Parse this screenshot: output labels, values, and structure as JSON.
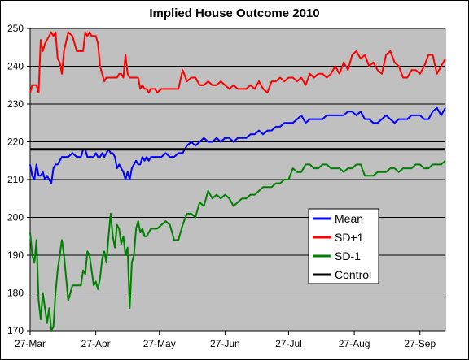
{
  "chart_data": {
    "type": "line",
    "title": "Implied House Outcome 2010",
    "xlabel": "",
    "ylabel": "",
    "ylim": [
      170,
      250
    ],
    "yticks": [
      170,
      180,
      190,
      200,
      210,
      220,
      230,
      240,
      250
    ],
    "x_tick_labels": [
      "27-Mar",
      "27-Apr",
      "27-May",
      "27-Jun",
      "27-Jul",
      "27-Aug",
      "27-Sep"
    ],
    "x_tick_days": [
      0,
      31,
      61,
      92,
      122,
      153,
      184
    ],
    "x_range_days": [
      0,
      196
    ],
    "grid": "horizontal",
    "plot_background": "#c0c0c0",
    "legend_position": "right",
    "series": [
      {
        "name": "Mean",
        "color": "#0000ff",
        "x": [
          0,
          1,
          2,
          3,
          4,
          5,
          6,
          7,
          8,
          9,
          10,
          11,
          12,
          13,
          14,
          15,
          16,
          18,
          20,
          22,
          24,
          25,
          26,
          27,
          28,
          29,
          30,
          31,
          32,
          33,
          34,
          35,
          36,
          37,
          38,
          39,
          40,
          41,
          42,
          43,
          44,
          45,
          46,
          47,
          48,
          49,
          50,
          51,
          52,
          53,
          54,
          55,
          56,
          57,
          58,
          59,
          60,
          62,
          64,
          66,
          68,
          70,
          72,
          74,
          76,
          78,
          80,
          82,
          84,
          86,
          88,
          90,
          92,
          94,
          96,
          98,
          100,
          102,
          104,
          106,
          108,
          110,
          112,
          114,
          116,
          118,
          120,
          122,
          124,
          126,
          128,
          130,
          132,
          134,
          136,
          138,
          140,
          142,
          144,
          146,
          148,
          150,
          152,
          154,
          156,
          158,
          160,
          162,
          164,
          166,
          168,
          170,
          172,
          174,
          176,
          178,
          180,
          182,
          184,
          186,
          188,
          190,
          192,
          194,
          196
        ],
        "values": [
          214,
          211,
          210,
          214,
          211,
          211,
          212,
          210,
          211,
          210,
          209,
          213,
          214,
          214,
          215,
          216,
          216,
          216,
          217,
          216,
          216,
          218,
          218,
          216,
          216,
          216,
          216,
          217,
          216,
          216,
          217,
          216,
          217,
          218,
          217,
          217,
          216,
          213,
          214,
          213,
          212,
          210,
          212,
          210,
          213,
          214,
          215,
          214,
          214,
          216,
          215,
          216,
          215,
          216,
          216,
          216,
          216,
          216,
          217,
          216,
          216,
          217,
          217,
          219,
          220,
          219,
          220,
          221,
          220,
          220,
          221,
          220,
          221,
          221,
          220,
          221,
          221,
          221,
          222,
          222,
          223,
          222,
          223,
          223,
          224,
          224,
          225,
          225,
          225,
          226,
          227,
          225,
          226,
          226,
          226,
          226,
          227,
          227,
          227,
          227,
          227,
          228,
          228,
          227,
          228,
          226,
          226,
          225,
          225,
          226,
          227,
          226,
          225,
          226,
          226,
          226,
          227,
          227,
          227,
          226,
          226,
          228,
          229,
          227,
          229
        ]
      },
      {
        "name": "SD+1",
        "color": "#ff0000",
        "x": [
          0,
          1,
          2,
          3,
          4,
          5,
          6,
          7,
          8,
          9,
          10,
          11,
          12,
          13,
          14,
          15,
          16,
          18,
          20,
          22,
          24,
          25,
          26,
          27,
          28,
          29,
          30,
          31,
          32,
          33,
          34,
          35,
          36,
          37,
          38,
          39,
          40,
          41,
          42,
          43,
          44,
          45,
          46,
          47,
          48,
          49,
          50,
          51,
          52,
          53,
          54,
          55,
          56,
          57,
          58,
          59,
          60,
          62,
          64,
          66,
          68,
          70,
          72,
          74,
          76,
          78,
          80,
          82,
          84,
          86,
          88,
          90,
          92,
          94,
          96,
          98,
          100,
          102,
          104,
          106,
          108,
          110,
          112,
          114,
          116,
          118,
          120,
          122,
          124,
          126,
          128,
          130,
          132,
          134,
          136,
          138,
          140,
          142,
          144,
          146,
          148,
          150,
          152,
          154,
          156,
          158,
          160,
          162,
          164,
          166,
          168,
          170,
          172,
          174,
          176,
          178,
          180,
          182,
          184,
          186,
          188,
          190,
          192,
          194,
          196
        ],
        "values": [
          233,
          235,
          235,
          235,
          233,
          247,
          244,
          246,
          247,
          248,
          249,
          248,
          249,
          242,
          241,
          238,
          244,
          249,
          248,
          244,
          244,
          244,
          249,
          248,
          249,
          248,
          248,
          248,
          246,
          240,
          238,
          236,
          237,
          237,
          237,
          237,
          237,
          237,
          238,
          238,
          237,
          243,
          238,
          237,
          237,
          237,
          237,
          237,
          234,
          235,
          234,
          234,
          233,
          234,
          234,
          234,
          233,
          234,
          234,
          234,
          234,
          234,
          239,
          236,
          237,
          237,
          235,
          235,
          236,
          235,
          235,
          236,
          235,
          234,
          235,
          234,
          234,
          234,
          235,
          234,
          236,
          234,
          233,
          236,
          236,
          237,
          236,
          237,
          237,
          236,
          237,
          235,
          238,
          237,
          238,
          238,
          237,
          238,
          240,
          238,
          241,
          239,
          243,
          244,
          242,
          243,
          240,
          241,
          239,
          238,
          243,
          244,
          241,
          240,
          237,
          237,
          239,
          239,
          238,
          240,
          243,
          243,
          238,
          240,
          242
        ]
      },
      {
        "name": "SD-1",
        "color": "#008000",
        "x": [
          0,
          1,
          2,
          3,
          4,
          5,
          6,
          7,
          8,
          9,
          10,
          11,
          12,
          13,
          14,
          15,
          16,
          18,
          20,
          22,
          24,
          25,
          26,
          27,
          28,
          29,
          30,
          31,
          32,
          33,
          34,
          35,
          36,
          37,
          38,
          39,
          40,
          41,
          42,
          43,
          44,
          45,
          46,
          47,
          48,
          49,
          50,
          51,
          52,
          53,
          54,
          55,
          56,
          57,
          58,
          59,
          60,
          62,
          64,
          66,
          68,
          70,
          72,
          74,
          76,
          78,
          80,
          82,
          84,
          86,
          88,
          90,
          92,
          94,
          96,
          98,
          100,
          102,
          104,
          106,
          108,
          110,
          112,
          114,
          116,
          118,
          120,
          122,
          124,
          126,
          128,
          130,
          132,
          134,
          136,
          138,
          140,
          142,
          144,
          146,
          148,
          150,
          152,
          154,
          156,
          158,
          160,
          162,
          164,
          166,
          168,
          170,
          172,
          174,
          176,
          178,
          180,
          182,
          184,
          186,
          188,
          190,
          192,
          194,
          196
        ],
        "values": [
          196,
          190,
          188,
          194,
          178,
          173,
          180,
          176,
          172,
          176,
          170,
          171,
          180,
          186,
          190,
          194,
          190,
          178,
          182,
          182,
          182,
          186,
          185,
          191,
          190,
          186,
          182,
          183,
          181,
          184,
          189,
          191,
          188,
          195,
          201,
          195,
          192,
          198,
          197,
          193,
          195,
          190,
          192,
          176,
          188,
          190,
          197,
          199,
          196,
          197,
          195,
          195,
          196,
          197,
          197,
          197,
          197,
          198,
          199,
          198,
          194,
          194,
          198,
          201,
          201,
          200,
          204,
          203,
          207,
          205,
          206,
          205,
          206,
          205,
          203,
          204,
          205,
          205,
          206,
          206,
          207,
          208,
          208,
          208,
          209,
          209,
          210,
          210,
          213,
          212,
          212,
          214,
          214,
          213,
          213,
          214,
          214,
          213,
          213,
          213,
          212,
          213,
          213,
          214,
          214,
          211,
          211,
          211,
          212,
          212,
          212,
          213,
          213,
          212,
          213,
          213,
          213,
          214,
          214,
          213,
          213,
          214,
          214,
          214,
          215
        ]
      },
      {
        "name": "Control",
        "color": "#000000",
        "x": [
          0,
          196
        ],
        "values": [
          218,
          218
        ]
      }
    ]
  }
}
